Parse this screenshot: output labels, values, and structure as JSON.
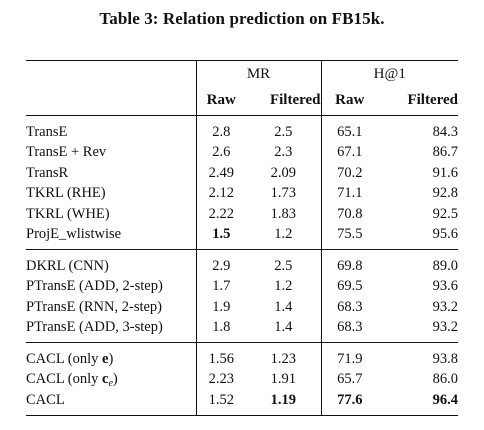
{
  "caption": "Table 3: Relation prediction on FB15k.",
  "headers": {
    "method": "",
    "group1": "MR",
    "group2": "H@1",
    "raw": "Raw",
    "filtered": "Filtered"
  },
  "blocks": [
    [
      {
        "method": "TransE",
        "mr_raw": "2.8",
        "mr_filt": "2.5",
        "h_raw": "65.1",
        "h_filt": "84.3"
      },
      {
        "method": "TransE + Rev",
        "mr_raw": "2.6",
        "mr_filt": "2.3",
        "h_raw": "67.1",
        "h_filt": "86.7"
      },
      {
        "method": "TransR",
        "mr_raw": "2.49",
        "mr_filt": "2.09",
        "h_raw": "70.2",
        "h_filt": "91.6"
      },
      {
        "method": "TKRL (RHE)",
        "mr_raw": "2.12",
        "mr_filt": "1.73",
        "h_raw": "71.1",
        "h_filt": "92.8"
      },
      {
        "method": "TKRL (WHE)",
        "mr_raw": "2.22",
        "mr_filt": "1.83",
        "h_raw": "70.8",
        "h_filt": "92.5"
      },
      {
        "method": "ProjE_wlistwise",
        "mr_raw": "1.5",
        "mr_filt": "1.2",
        "h_raw": "75.5",
        "h_filt": "95.6"
      }
    ],
    [
      {
        "method": "DKRL (CNN)",
        "mr_raw": "2.9",
        "mr_filt": "2.5",
        "h_raw": "69.8",
        "h_filt": "89.0"
      },
      {
        "method": "PTransE (ADD, 2-step)",
        "mr_raw": "1.7",
        "mr_filt": "1.2",
        "h_raw": "69.5",
        "h_filt": "93.6"
      },
      {
        "method": "PTransE (RNN, 2-step)",
        "mr_raw": "1.9",
        "mr_filt": "1.4",
        "h_raw": "68.3",
        "h_filt": "93.2"
      },
      {
        "method": "PTransE (ADD, 3-step)",
        "mr_raw": "1.8",
        "mr_filt": "1.4",
        "h_raw": "68.3",
        "h_filt": "93.2"
      }
    ],
    [
      {
        "method_prefix": "CACL (only ",
        "method_vec": "e",
        "method_suffix": ")",
        "mr_raw": "1.56",
        "mr_filt": "1.23",
        "h_raw": "71.9",
        "h_filt": "93.8"
      },
      {
        "method_prefix": "CACL (only ",
        "method_vec": "c",
        "method_sub": "e",
        "method_suffix": ")",
        "mr_raw": "2.23",
        "mr_filt": "1.91",
        "h_raw": "65.7",
        "h_filt": "86.0"
      },
      {
        "method": "CACL",
        "mr_raw": "1.52",
        "mr_filt": "1.19",
        "h_raw": "77.6",
        "h_filt": "96.4"
      }
    ]
  ]
}
